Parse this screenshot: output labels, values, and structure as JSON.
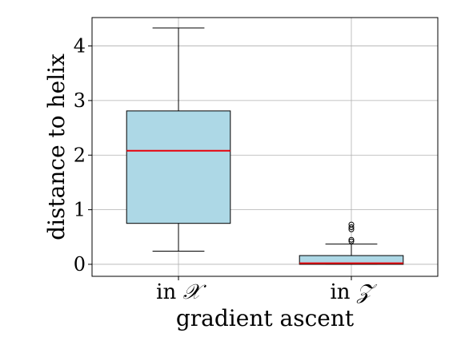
{
  "chart_data": {
    "type": "boxplot",
    "xlabel": "gradient ascent",
    "ylabel": "distance to helix",
    "ylim": [
      -0.22,
      4.52
    ],
    "yticks": [
      0,
      1,
      2,
      3,
      4
    ],
    "grid": true,
    "categories": [
      {
        "prefix": "in ",
        "symbol": "𝒳"
      },
      {
        "prefix": "in ",
        "symbol": "𝒵"
      }
    ],
    "boxes": [
      {
        "whisker_low": 0.24,
        "q1": 0.75,
        "median": 2.08,
        "q3": 2.81,
        "whisker_high": 4.33,
        "outliers": []
      },
      {
        "whisker_low": 0.0,
        "q1": 0.0,
        "median": 0.02,
        "q3": 0.16,
        "whisker_high": 0.37,
        "outliers": [
          0.42,
          0.45,
          0.64,
          0.68,
          0.73
        ]
      }
    ],
    "colors": {
      "box_fill": "#add8e6",
      "median": "#e8000b",
      "grid": "#b0b0b0",
      "outlier": "#000000"
    }
  }
}
